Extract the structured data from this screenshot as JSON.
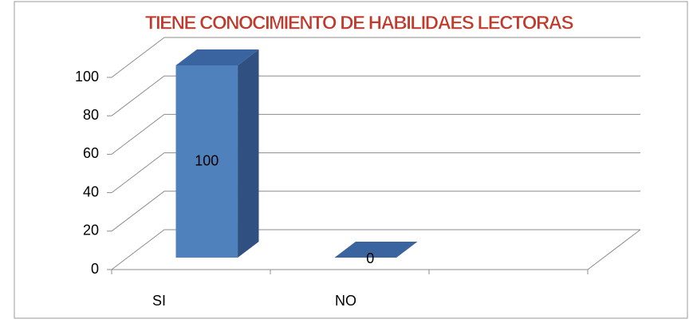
{
  "chart_data": {
    "type": "bar3d",
    "title": "TIENE CONOCIMIENTO DE HABILIDAES LECTORAS",
    "categories": [
      "SI",
      "NO",
      null
    ],
    "values": [
      100,
      0,
      null
    ],
    "color": "#4f81bd",
    "ylim": [
      0,
      100
    ],
    "yticks": [
      0,
      20,
      40,
      60,
      80,
      100
    ],
    "grid": true
  }
}
